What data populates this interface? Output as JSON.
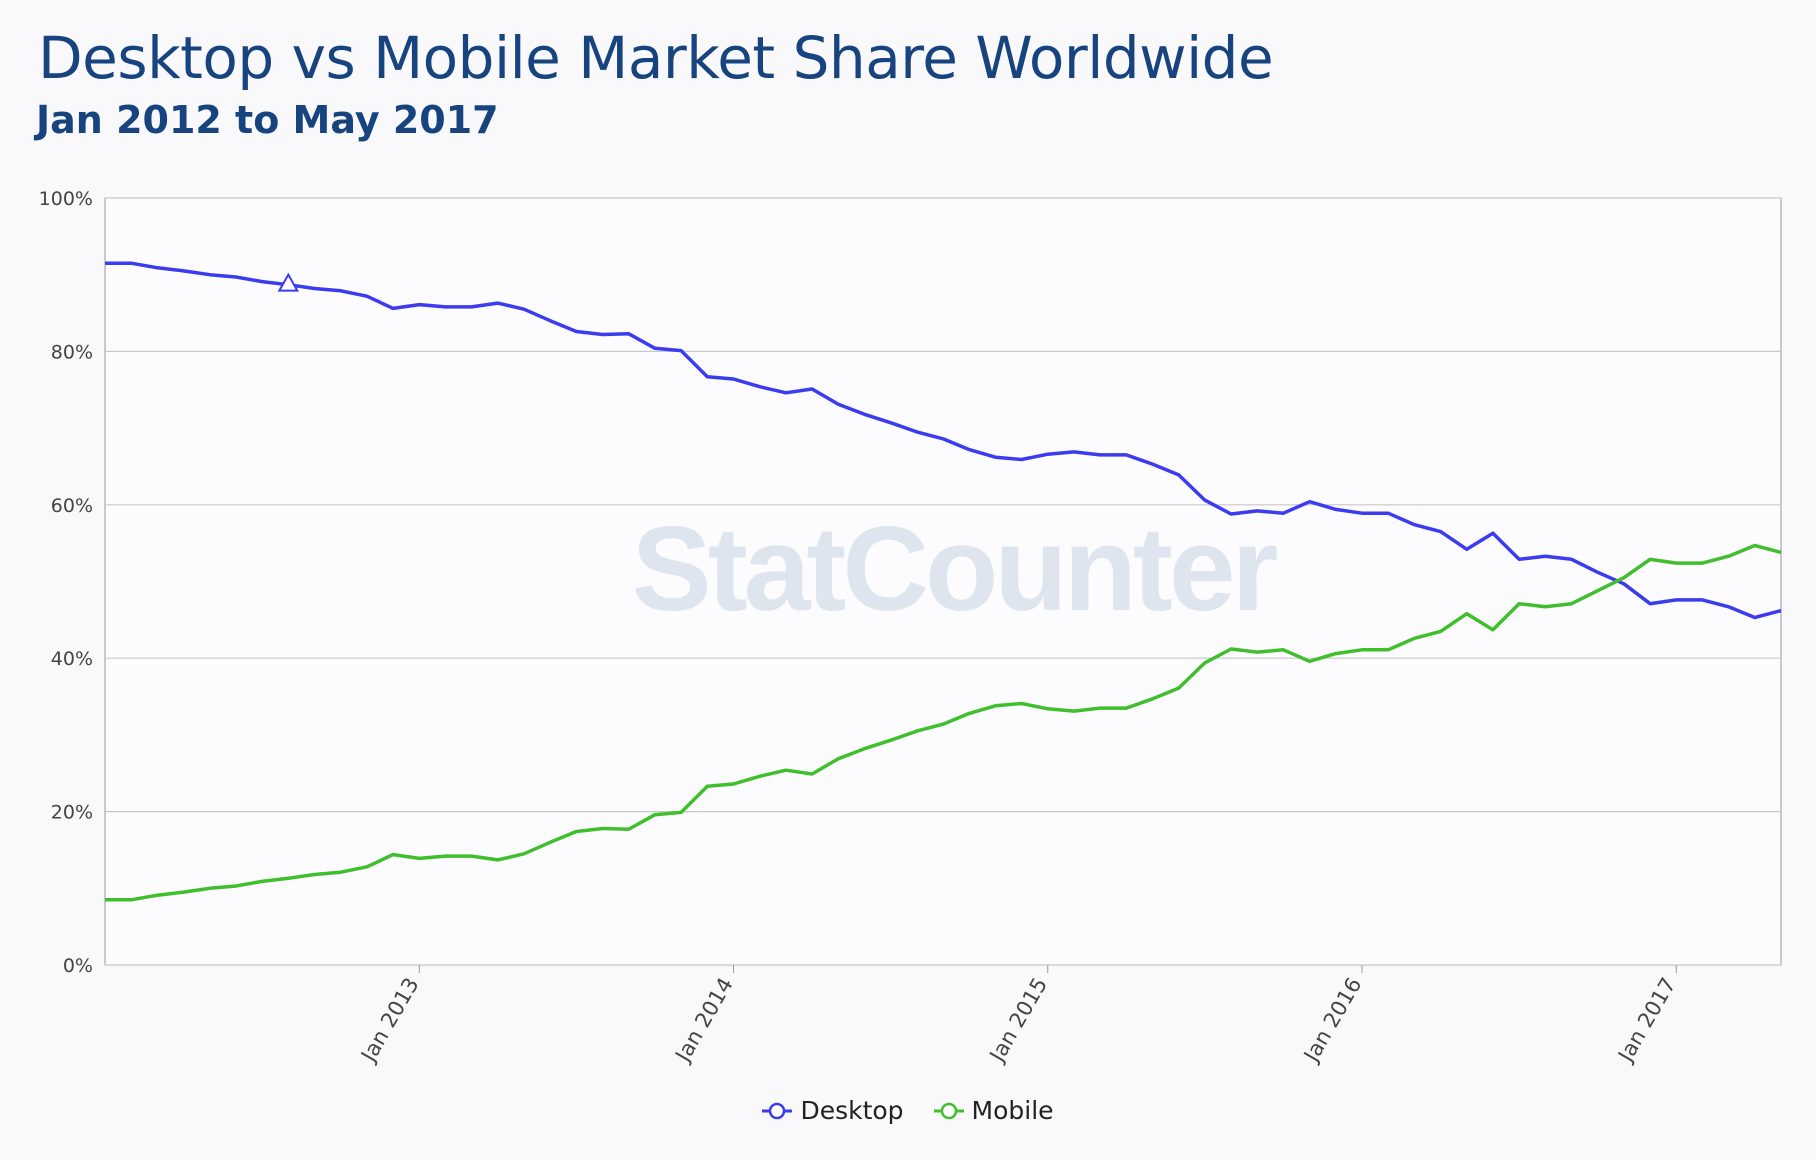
{
  "chart_data": {
    "type": "line",
    "title": "Desktop vs Mobile Market Share Worldwide",
    "subtitle": "Jan 2012 to May 2017",
    "watermark": "StatCounter",
    "x_start": "Jan 2012",
    "x_end": "May 2017",
    "x_interval": "monthly",
    "xticks": [
      "Jan 2013",
      "Jan 2014",
      "Jan 2015",
      "Jan 2016",
      "Jan 2017"
    ],
    "yticks": [
      "0%",
      "20%",
      "40%",
      "60%",
      "80%",
      "100%"
    ],
    "ylim": [
      0,
      100
    ],
    "grid": true,
    "legend_position": "bottom",
    "series": [
      {
        "name": "Desktop",
        "color": "#3b3bef",
        "values": [
          91.5,
          91.5,
          90.9,
          90.5,
          90.0,
          89.7,
          89.1,
          88.7,
          88.2,
          87.9,
          87.2,
          85.6,
          86.1,
          85.8,
          85.8,
          86.3,
          85.5,
          84.0,
          82.6,
          82.2,
          82.3,
          80.4,
          80.1,
          76.7,
          76.4,
          75.4,
          74.6,
          75.1,
          73.1,
          71.8,
          70.7,
          69.5,
          68.6,
          67.2,
          66.2,
          65.9,
          66.6,
          66.9,
          66.5,
          66.5,
          65.3,
          63.9,
          60.6,
          58.8,
          59.2,
          58.9,
          60.4,
          59.4,
          58.9,
          58.9,
          57.4,
          56.5,
          54.2,
          56.3,
          52.9,
          53.3,
          52.9,
          51.2,
          49.7,
          47.1,
          47.6,
          47.6,
          46.7,
          45.3,
          46.2
        ]
      },
      {
        "name": "Mobile",
        "color": "#3fbf2c",
        "values": [
          8.5,
          8.5,
          9.1,
          9.5,
          10.0,
          10.3,
          10.9,
          11.3,
          11.8,
          12.1,
          12.8,
          14.4,
          13.9,
          14.2,
          14.2,
          13.7,
          14.5,
          16.0,
          17.4,
          17.8,
          17.7,
          19.6,
          19.9,
          23.3,
          23.6,
          24.6,
          25.4,
          24.9,
          26.9,
          28.2,
          29.3,
          30.5,
          31.4,
          32.8,
          33.8,
          34.1,
          33.4,
          33.1,
          33.5,
          33.5,
          34.7,
          36.1,
          39.4,
          41.2,
          40.8,
          41.1,
          39.6,
          40.6,
          41.1,
          41.1,
          42.6,
          43.5,
          45.8,
          43.7,
          47.1,
          46.7,
          47.1,
          48.8,
          50.5,
          52.9,
          52.4,
          52.4,
          53.3,
          54.7,
          53.8
        ]
      }
    ]
  }
}
